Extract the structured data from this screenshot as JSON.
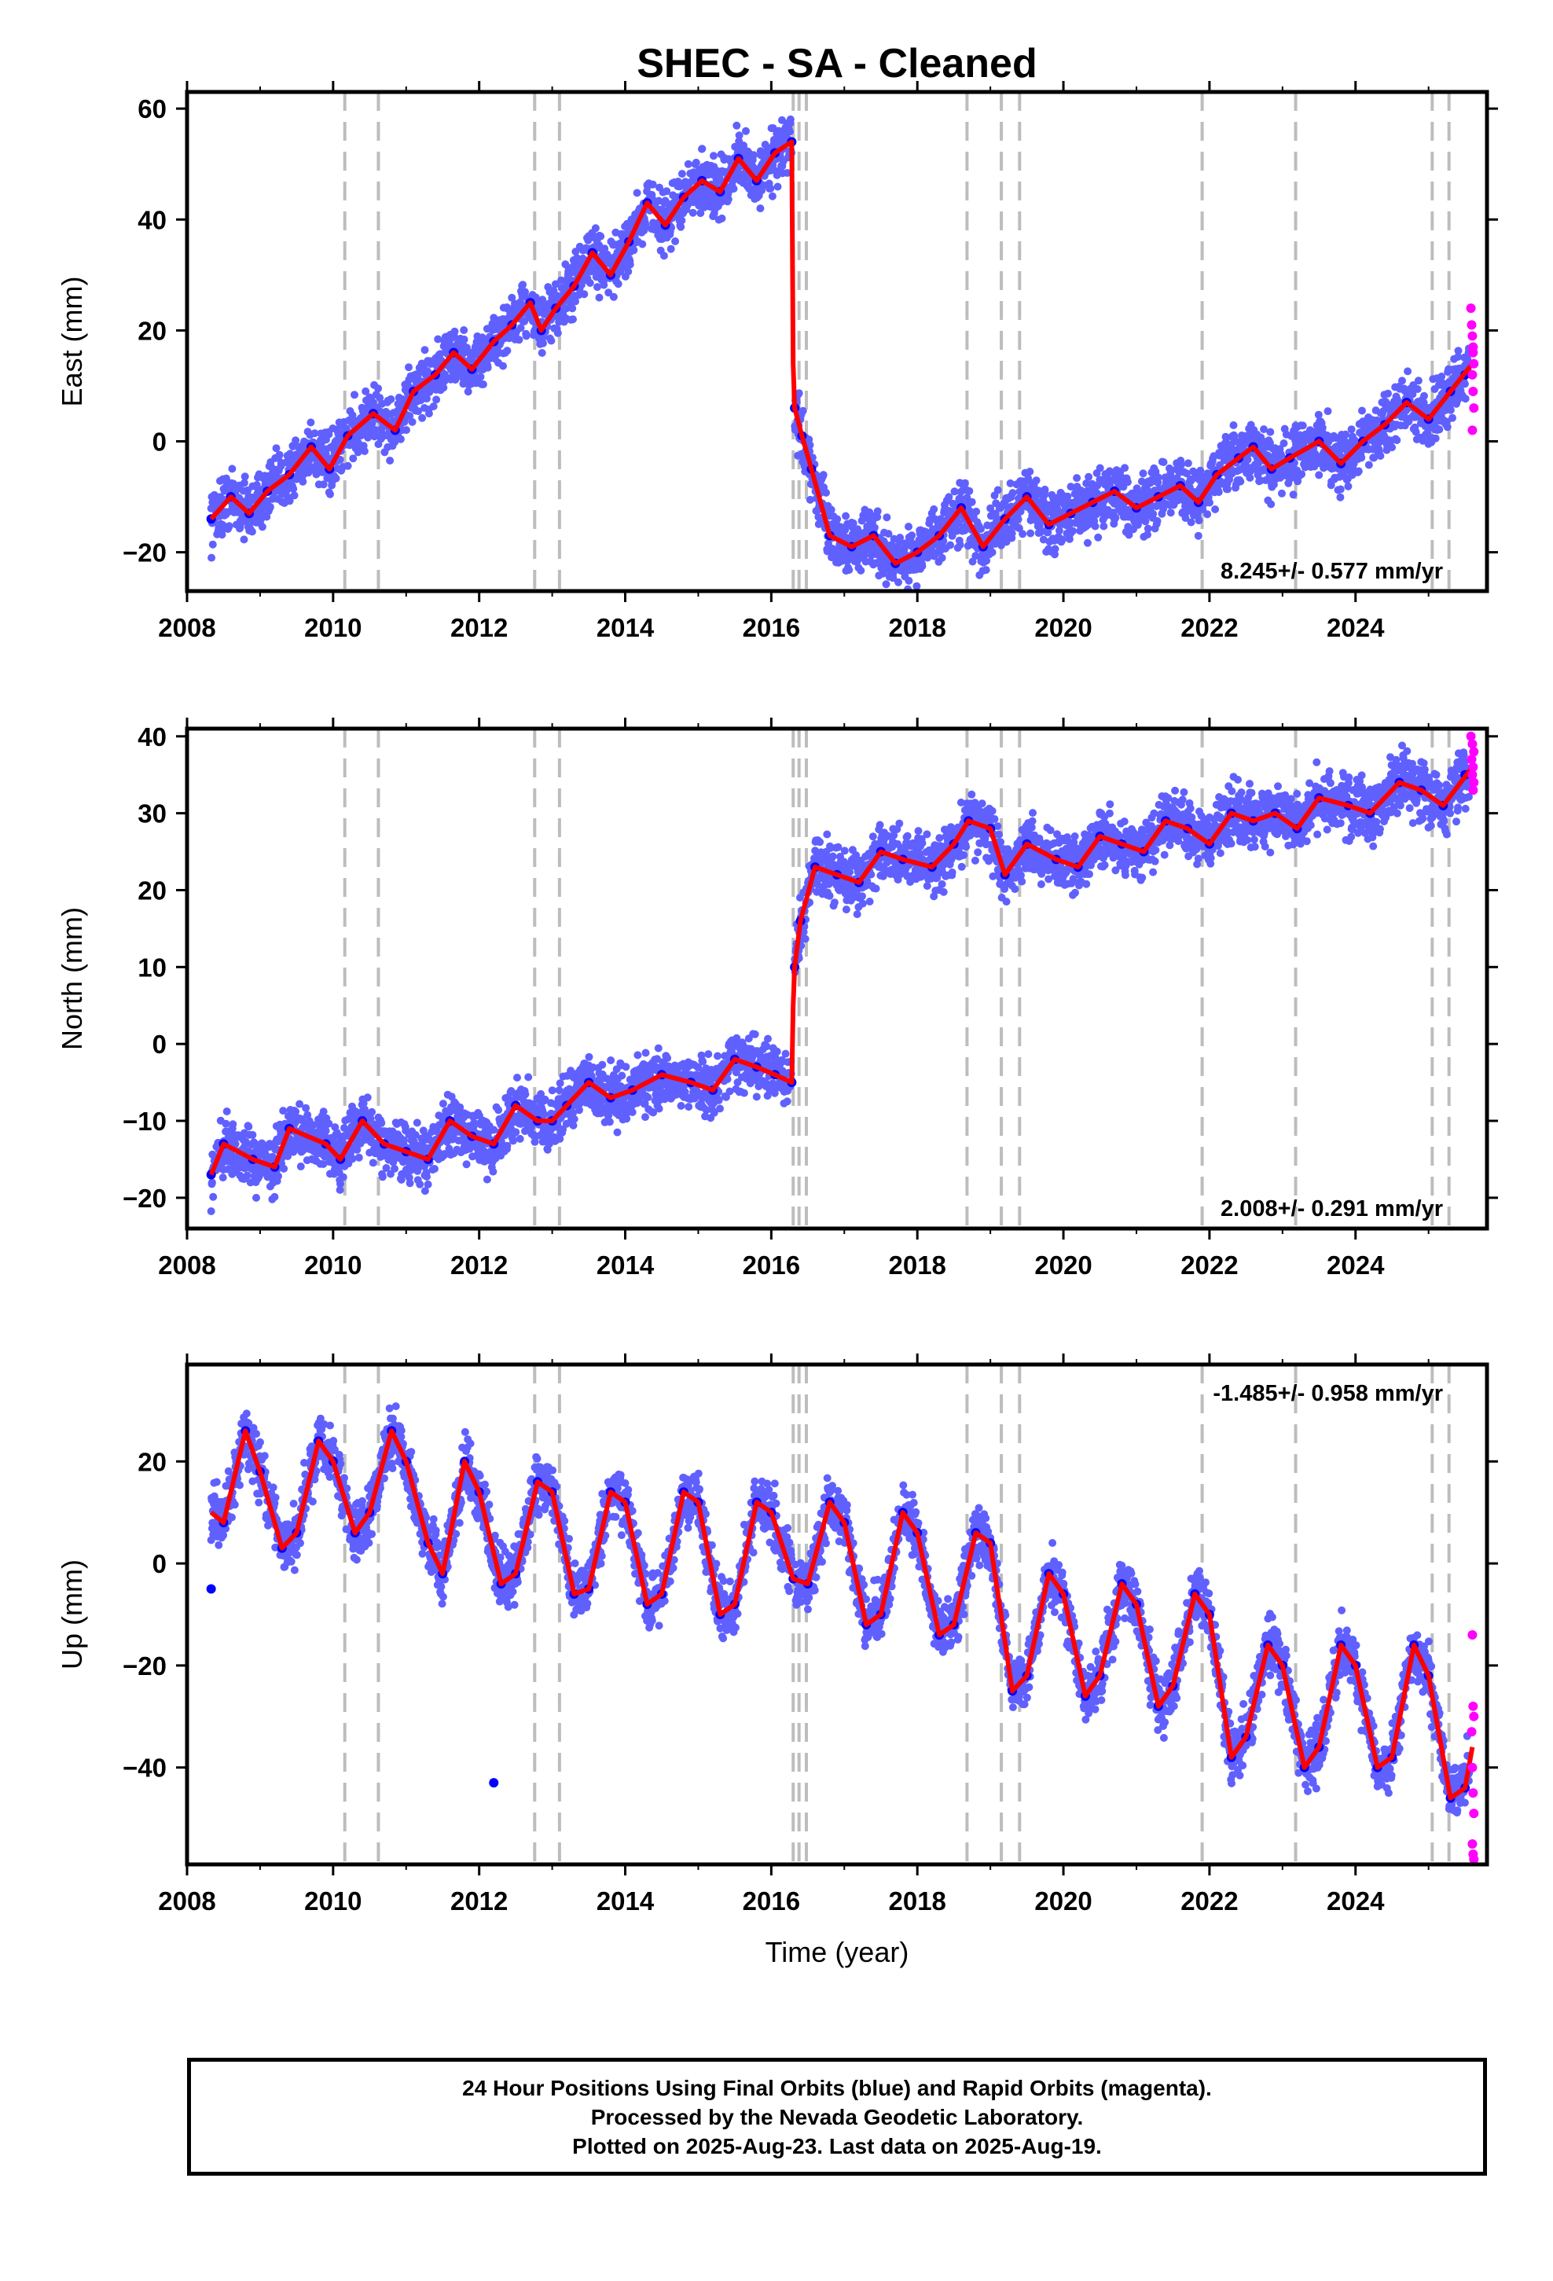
{
  "chart_data": [
    {
      "type": "scatter",
      "title": "SHEC  - SA - Cleaned",
      "ylabel": "East (mm)",
      "xlabel": "",
      "xlim": [
        2008,
        2025.8
      ],
      "ylim": [
        -27,
        63
      ],
      "xticks": [
        2008,
        2010,
        2012,
        2014,
        2016,
        2018,
        2020,
        2022,
        2024
      ],
      "yticks": [
        -20,
        0,
        20,
        40,
        60
      ],
      "rate_label": "8.245+/- 0.577 mm/yr",
      "rate_position": "bottom-right",
      "grid": false,
      "event_lines": [
        2010.16,
        2010.62,
        2012.76,
        2013.1,
        2016.3,
        2016.38,
        2016.48,
        2018.68,
        2019.15,
        2019.4,
        2021.9,
        2023.18,
        2025.05,
        2025.28
      ],
      "series": [
        {
          "kind": "final_orbits",
          "color": "#0000ff",
          "x": [
            2008.33,
            2008.6,
            2008.85,
            2009.1,
            2009.4,
            2009.7,
            2009.95,
            2010.2,
            2010.55,
            2010.85,
            2011.1,
            2011.4,
            2011.65,
            2011.9,
            2012.2,
            2012.45,
            2012.7,
            2012.85,
            2013.05,
            2013.3,
            2013.55,
            2013.8,
            2014.05,
            2014.3,
            2014.55,
            2014.8,
            2015.05,
            2015.3,
            2015.55,
            2015.8,
            2016.05,
            2016.28,
            2016.32,
            2016.42,
            2016.55,
            2016.8,
            2017.1,
            2017.4,
            2017.7,
            2018.0,
            2018.3,
            2018.6,
            2018.9,
            2019.2,
            2019.5,
            2019.8,
            2020.1,
            2020.4,
            2020.7,
            2021.0,
            2021.3,
            2021.6,
            2021.85,
            2022.1,
            2022.4,
            2022.6,
            2022.85,
            2023.1,
            2023.5,
            2023.8,
            2024.1,
            2024.4,
            2024.7,
            2025.0,
            2025.3,
            2025.5
          ],
          "y": [
            -14,
            -10,
            -13,
            -9,
            -6,
            -1,
            -5,
            1,
            5,
            2,
            9,
            12,
            16,
            13,
            18,
            21,
            25,
            20,
            24,
            28,
            34,
            30,
            36,
            43,
            39,
            44,
            47,
            45,
            51,
            47,
            52,
            54,
            6,
            1,
            -5,
            -17,
            -19,
            -17,
            -22,
            -20,
            -17,
            -12,
            -19,
            -14,
            -10,
            -15,
            -13,
            -11,
            -9,
            -12,
            -10,
            -8,
            -11,
            -6,
            -3,
            -1,
            -5,
            -3,
            0,
            -4,
            0,
            3,
            7,
            4,
            9,
            12
          ]
        },
        {
          "kind": "rapid_orbits",
          "color": "#ff00ff",
          "x": [
            2025.58,
            2025.59,
            2025.6,
            2025.61,
            2025.62,
            2025.6,
            2025.61,
            2025.62,
            2025.6,
            2025.61
          ],
          "y": [
            24,
            21,
            19,
            17,
            14,
            12,
            9,
            6,
            2,
            16
          ]
        },
        {
          "kind": "model",
          "color": "#ff0000",
          "x": [
            2008.33,
            2008.6,
            2008.85,
            2009.1,
            2009.4,
            2009.7,
            2009.95,
            2010.2,
            2010.55,
            2010.85,
            2011.1,
            2011.4,
            2011.65,
            2011.9,
            2012.2,
            2012.45,
            2012.7,
            2012.85,
            2013.05,
            2013.3,
            2013.55,
            2013.8,
            2014.05,
            2014.3,
            2014.55,
            2014.8,
            2015.05,
            2015.3,
            2015.55,
            2015.8,
            2016.05,
            2016.28,
            2016.3,
            2016.32,
            2016.42,
            2016.55,
            2016.8,
            2017.1,
            2017.4,
            2017.7,
            2018.0,
            2018.3,
            2018.6,
            2018.9,
            2019.2,
            2019.5,
            2019.8,
            2020.1,
            2020.4,
            2020.7,
            2021.0,
            2021.3,
            2021.6,
            2021.85,
            2022.1,
            2022.4,
            2022.6,
            2022.85,
            2023.1,
            2023.5,
            2023.8,
            2024.1,
            2024.4,
            2024.7,
            2025.0,
            2025.3,
            2025.6
          ],
          "y": [
            -14,
            -10,
            -13,
            -9,
            -6,
            -1,
            -5,
            1,
            5,
            2,
            9,
            12,
            16,
            13,
            18,
            21,
            25,
            20,
            24,
            28,
            34,
            30,
            36,
            43,
            39,
            44,
            47,
            45,
            51,
            47,
            52,
            54,
            14,
            6,
            1,
            -5,
            -17,
            -19,
            -17,
            -22,
            -20,
            -17,
            -12,
            -19,
            -14,
            -10,
            -15,
            -13,
            -11,
            -9,
            -12,
            -10,
            -8,
            -11,
            -6,
            -3,
            -1,
            -5,
            -3,
            0,
            -4,
            0,
            3,
            7,
            4,
            9,
            14
          ]
        }
      ]
    },
    {
      "type": "scatter",
      "title": "",
      "ylabel": "North (mm)",
      "xlabel": "",
      "xlim": [
        2008,
        2025.8
      ],
      "ylim": [
        -24,
        41
      ],
      "xticks": [
        2008,
        2010,
        2012,
        2014,
        2016,
        2018,
        2020,
        2022,
        2024
      ],
      "yticks": [
        -20,
        -10,
        0,
        10,
        20,
        30,
        40
      ],
      "rate_label": "2.008+/- 0.291 mm/yr",
      "rate_position": "bottom-right",
      "grid": false,
      "event_lines": [
        2010.16,
        2010.62,
        2012.76,
        2013.1,
        2016.3,
        2016.38,
        2016.48,
        2018.68,
        2019.15,
        2019.4,
        2021.9,
        2023.18,
        2025.05,
        2025.28
      ],
      "series": [
        {
          "kind": "final_orbits",
          "color": "#0000ff",
          "x": [
            2008.33,
            2008.5,
            2008.9,
            2009.2,
            2009.4,
            2009.9,
            2010.1,
            2010.4,
            2010.7,
            2011.0,
            2011.3,
            2011.6,
            2011.9,
            2012.2,
            2012.5,
            2012.8,
            2013.0,
            2013.2,
            2013.5,
            2013.8,
            2014.1,
            2014.5,
            2014.9,
            2015.2,
            2015.5,
            2015.8,
            2016.05,
            2016.28,
            2016.32,
            2016.4,
            2016.6,
            2016.9,
            2017.2,
            2017.5,
            2017.8,
            2018.2,
            2018.5,
            2018.7,
            2019.0,
            2019.2,
            2019.5,
            2019.9,
            2020.2,
            2020.5,
            2020.8,
            2021.1,
            2021.4,
            2021.7,
            2022.0,
            2022.3,
            2022.6,
            2022.9,
            2023.2,
            2023.5,
            2023.9,
            2024.2,
            2024.6,
            2024.9,
            2025.2,
            2025.5
          ],
          "y": [
            -17,
            -13,
            -15,
            -16,
            -11,
            -13,
            -15,
            -10,
            -13,
            -14,
            -15,
            -10,
            -12,
            -13,
            -8,
            -10,
            -10,
            -8,
            -5,
            -7,
            -6,
            -4,
            -5,
            -6,
            -2,
            -3,
            -4,
            -5,
            10,
            16,
            23,
            22,
            21,
            25,
            24,
            23,
            26,
            29,
            28,
            22,
            26,
            24,
            23,
            27,
            26,
            25,
            29,
            28,
            26,
            30,
            29,
            30,
            28,
            32,
            31,
            30,
            34,
            33,
            31,
            35
          ]
        },
        {
          "kind": "rapid_orbits",
          "color": "#ff00ff",
          "x": [
            2025.58,
            2025.6,
            2025.62,
            2025.59,
            2025.61,
            2025.6,
            2025.62,
            2025.61
          ],
          "y": [
            40,
            39,
            38,
            37,
            36,
            35,
            34,
            33
          ]
        },
        {
          "kind": "model",
          "color": "#ff0000",
          "x": [
            2008.33,
            2008.5,
            2008.9,
            2009.2,
            2009.4,
            2009.9,
            2010.1,
            2010.4,
            2010.7,
            2011.0,
            2011.3,
            2011.6,
            2011.9,
            2012.2,
            2012.5,
            2012.8,
            2013.0,
            2013.2,
            2013.5,
            2013.8,
            2014.1,
            2014.5,
            2014.9,
            2015.2,
            2015.5,
            2015.8,
            2016.05,
            2016.28,
            2016.3,
            2016.32,
            2016.4,
            2016.6,
            2016.9,
            2017.2,
            2017.5,
            2017.8,
            2018.2,
            2018.5,
            2018.7,
            2019.0,
            2019.2,
            2019.5,
            2019.9,
            2020.2,
            2020.5,
            2020.8,
            2021.1,
            2021.4,
            2021.7,
            2022.0,
            2022.3,
            2022.6,
            2022.9,
            2023.2,
            2023.5,
            2023.9,
            2024.2,
            2024.6,
            2024.9,
            2025.2,
            2025.6
          ],
          "y": [
            -17,
            -13,
            -15,
            -16,
            -11,
            -13,
            -15,
            -10,
            -13,
            -14,
            -15,
            -10,
            -12,
            -13,
            -8,
            -10,
            -10,
            -8,
            -5,
            -7,
            -6,
            -4,
            -5,
            -6,
            -2,
            -3,
            -4,
            -5,
            5,
            10,
            16,
            23,
            22,
            21,
            25,
            24,
            23,
            26,
            29,
            28,
            22,
            26,
            24,
            23,
            27,
            26,
            25,
            29,
            28,
            26,
            30,
            29,
            30,
            28,
            32,
            31,
            30,
            34,
            33,
            31,
            36
          ]
        }
      ]
    },
    {
      "type": "scatter",
      "title": "",
      "ylabel": "Up (mm)",
      "xlabel": "Time (year)",
      "xlim": [
        2008,
        2025.8
      ],
      "ylim": [
        -59,
        39
      ],
      "xticks": [
        2008,
        2010,
        2012,
        2014,
        2016,
        2018,
        2020,
        2022,
        2024
      ],
      "yticks": [
        -40,
        -20,
        0,
        20
      ],
      "rate_label": "-1.485+/- 0.958 mm/yr",
      "rate_position": "top-right",
      "grid": false,
      "event_lines": [
        2010.16,
        2010.62,
        2012.76,
        2013.1,
        2016.3,
        2016.38,
        2016.48,
        2018.68,
        2019.15,
        2019.4,
        2021.9,
        2023.18,
        2025.05,
        2025.28
      ],
      "series": [
        {
          "kind": "final_orbits",
          "color": "#0000ff",
          "x": [
            2008.33,
            2008.5,
            2008.8,
            2009.0,
            2009.3,
            2009.5,
            2009.8,
            2010.0,
            2010.3,
            2010.5,
            2010.8,
            2011.0,
            2011.3,
            2011.5,
            2011.8,
            2012.0,
            2012.3,
            2012.5,
            2012.8,
            2013.0,
            2013.3,
            2013.5,
            2013.8,
            2014.0,
            2014.3,
            2014.5,
            2014.8,
            2015.0,
            2015.3,
            2015.5,
            2015.8,
            2016.0,
            2016.3,
            2016.5,
            2016.8,
            2017.0,
            2017.3,
            2017.5,
            2017.8,
            2018.0,
            2018.3,
            2018.5,
            2018.8,
            2019.0,
            2019.3,
            2019.5,
            2019.8,
            2020.0,
            2020.3,
            2020.5,
            2020.8,
            2021.0,
            2021.3,
            2021.5,
            2021.8,
            2022.0,
            2022.3,
            2022.5,
            2022.8,
            2023.0,
            2023.3,
            2023.5,
            2023.8,
            2024.0,
            2024.3,
            2024.5,
            2024.8,
            2025.0,
            2025.3,
            2025.5,
            2012.2
          ],
          "y": [
            -5,
            8,
            26,
            18,
            3,
            6,
            24,
            20,
            6,
            10,
            26,
            20,
            4,
            -2,
            20,
            14,
            -4,
            -2,
            16,
            14,
            -6,
            -5,
            14,
            12,
            -8,
            -6,
            14,
            12,
            -10,
            -8,
            12,
            10,
            -3,
            -4,
            12,
            8,
            -12,
            -10,
            10,
            6,
            -14,
            -12,
            6,
            4,
            -25,
            -22,
            -2,
            -6,
            -26,
            -22,
            -4,
            -8,
            -28,
            -24,
            -6,
            -10,
            -38,
            -34,
            -16,
            -20,
            -40,
            -36,
            -16,
            -20,
            -40,
            -38,
            -16,
            -22,
            -46,
            -44,
            -43
          ]
        },
        {
          "kind": "rapid_orbits",
          "color": "#ff00ff",
          "x": [
            2025.6,
            2025.61,
            2025.62,
            2025.59,
            2025.6,
            2025.61,
            2025.62,
            2025.6,
            2025.61,
            2025.62
          ],
          "y": [
            -14,
            -28,
            -30,
            -33,
            -40,
            -45,
            -49,
            -55,
            -57,
            -58
          ]
        },
        {
          "kind": "model",
          "color": "#ff0000",
          "x": [
            2008.33,
            2008.5,
            2008.8,
            2009.0,
            2009.3,
            2009.5,
            2009.8,
            2010.0,
            2010.3,
            2010.5,
            2010.8,
            2011.0,
            2011.3,
            2011.5,
            2011.8,
            2012.0,
            2012.3,
            2012.5,
            2012.8,
            2013.0,
            2013.3,
            2013.5,
            2013.8,
            2014.0,
            2014.3,
            2014.5,
            2014.8,
            2015.0,
            2015.3,
            2015.5,
            2015.8,
            2016.0,
            2016.3,
            2016.5,
            2016.8,
            2017.0,
            2017.3,
            2017.5,
            2017.8,
            2018.0,
            2018.3,
            2018.5,
            2018.8,
            2019.0,
            2019.3,
            2019.5,
            2019.8,
            2020.0,
            2020.3,
            2020.5,
            2020.8,
            2021.0,
            2021.3,
            2021.5,
            2021.8,
            2022.0,
            2022.3,
            2022.5,
            2022.8,
            2023.0,
            2023.3,
            2023.5,
            2023.8,
            2024.0,
            2024.3,
            2024.5,
            2024.8,
            2025.0,
            2025.3,
            2025.5,
            2025.6
          ],
          "y": [
            10,
            8,
            26,
            18,
            3,
            6,
            24,
            20,
            6,
            10,
            26,
            20,
            4,
            -2,
            20,
            14,
            -4,
            -2,
            16,
            14,
            -6,
            -5,
            14,
            12,
            -8,
            -6,
            14,
            12,
            -10,
            -8,
            12,
            10,
            -3,
            -4,
            12,
            8,
            -12,
            -10,
            10,
            6,
            -14,
            -12,
            6,
            4,
            -25,
            -22,
            -2,
            -6,
            -26,
            -22,
            -4,
            -8,
            -28,
            -24,
            -6,
            -10,
            -38,
            -34,
            -16,
            -20,
            -40,
            -36,
            -16,
            -20,
            -40,
            -38,
            -16,
            -22,
            -46,
            -44,
            -36
          ]
        }
      ]
    }
  ],
  "footer": {
    "line1": "24 Hour Positions Using Final Orbits (blue) and Rapid Orbits (magenta).",
    "line2": "Processed by the Nevada Geodetic Laboratory.",
    "line3": "Plotted on 2025-Aug-23. Last data on 2025-Aug-19."
  }
}
